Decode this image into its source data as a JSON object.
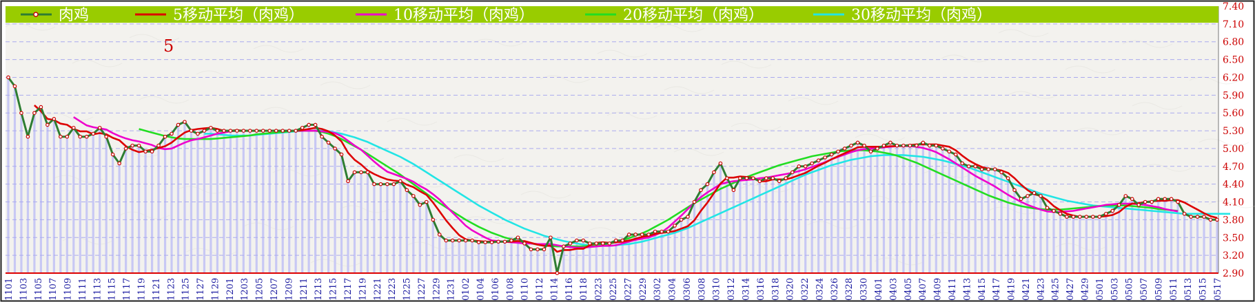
{
  "chart_data": {
    "type": "line",
    "annotation": "5",
    "ylim": [
      2.9,
      7.4
    ],
    "yticks": [
      "7.40",
      "7.10",
      "6.80",
      "6.50",
      "6.20",
      "5.90",
      "5.60",
      "5.30",
      "5.00",
      "4.70",
      "4.40",
      "4.10",
      "3.80",
      "3.50",
      "3.20",
      "2.90"
    ],
    "xticks": [
      "1101",
      "1103",
      "1105",
      "1107",
      "1109",
      "1111",
      "1113",
      "1115",
      "1117",
      "1119",
      "1121",
      "1123",
      "1125",
      "1127",
      "1129",
      "1201",
      "1203",
      "1205",
      "1207",
      "1209",
      "1211",
      "1213",
      "1215",
      "1217",
      "1219",
      "1221",
      "1223",
      "1225",
      "1227",
      "1229",
      "1231",
      "0102",
      "0104",
      "0106",
      "0108",
      "0110",
      "0112",
      "0114",
      "0116",
      "0118",
      "0223",
      "0225",
      "0227",
      "0229",
      "0302",
      "0304",
      "0306",
      "0308",
      "0310",
      "0312",
      "0314",
      "0316",
      "0318",
      "0320",
      "0322",
      "0324",
      "0326",
      "0328",
      "0330",
      "0401",
      "0403",
      "0405",
      "0407",
      "0409",
      "0411",
      "0413",
      "0415",
      "0417",
      "0419",
      "0421",
      "0423",
      "0425",
      "0427",
      "0429",
      "0501",
      "0503",
      "0505",
      "0507",
      "0509",
      "0511",
      "0513",
      "0515",
      "0517"
    ],
    "grid": true,
    "legend_position": "top",
    "colors": {
      "legend_band": "#99cc00",
      "legend_text": "#ffffff",
      "price": "#2e7d32",
      "marker": "#cc0000",
      "ma5": "#dd0000",
      "ma10": "#ee00cc",
      "ma20": "#22dd22",
      "ma30": "#22e5e5",
      "grid": "#aaaaee",
      "vbars": "#c8c8f4",
      "ytick": "#cc0000",
      "xtick": "#1a1aa0"
    },
    "series": [
      {
        "name": "肉鸡",
        "key": "price",
        "values": [
          6.2,
          6.05,
          5.6,
          5.2,
          5.6,
          5.7,
          5.4,
          5.5,
          5.2,
          5.2,
          5.35,
          5.2,
          5.2,
          5.25,
          5.35,
          5.2,
          4.9,
          4.75,
          5,
          5.05,
          5.05,
          4.95,
          4.95,
          5.05,
          5.2,
          5.25,
          5.4,
          5.45,
          5.3,
          5.25,
          5.3,
          5.35,
          5.3,
          5.3,
          5.3,
          5.3,
          5.3,
          5.3,
          5.3,
          5.3,
          5.3,
          5.3,
          5.3,
          5.3,
          5.3,
          5.35,
          5.4,
          5.4,
          5.2,
          5.1,
          5.0,
          4.9,
          4.45,
          4.6,
          4.6,
          4.6,
          4.4,
          4.4,
          4.4,
          4.4,
          4.45,
          4.3,
          4.2,
          4.05,
          4.1,
          3.8,
          3.55,
          3.45,
          3.45,
          3.45,
          3.45,
          3.45,
          3.42,
          3.42,
          3.42,
          3.43,
          3.43,
          3.45,
          3.5,
          3.4,
          3.3,
          3.3,
          3.3,
          3.5,
          2.9,
          3.35,
          3.4,
          3.45,
          3.45,
          3.4,
          3.4,
          3.4,
          3.4,
          3.45,
          3.45,
          3.55,
          3.55,
          3.55,
          3.55,
          3.6,
          3.6,
          3.6,
          3.7,
          3.8,
          3.85,
          4.1,
          4.3,
          4.4,
          4.6,
          4.75,
          4.5,
          4.3,
          4.5,
          4.5,
          4.5,
          4.45,
          4.5,
          4.5,
          4.45,
          4.5,
          4.6,
          4.7,
          4.7,
          4.75,
          4.8,
          4.85,
          4.9,
          4.95,
          5.0,
          5.05,
          5.1,
          5.05,
          4.95,
          5.0,
          5.05,
          5.1,
          5.05,
          5.05,
          5.05,
          5.05,
          5.1,
          5.05,
          5.05,
          5.0,
          4.95,
          4.9,
          4.75,
          4.7,
          4.7,
          4.65,
          4.65,
          4.65,
          4.6,
          4.5,
          4.3,
          4.15,
          4.2,
          4.25,
          4.2,
          4.0,
          3.95,
          3.9,
          3.85,
          3.85,
          3.85,
          3.85,
          3.85,
          3.85,
          3.9,
          3.95,
          4.05,
          4.2,
          4.15,
          4.05,
          4.1,
          4.1,
          4.15,
          4.15,
          4.15,
          4.1,
          3.9,
          3.85,
          3.85,
          3.85,
          3.8,
          3.8
        ]
      },
      {
        "name": "5移动平均（肉鸡）",
        "key": "ma5",
        "values": [
          null,
          null,
          null,
          null,
          5.73,
          5.63,
          5.5,
          5.48,
          5.42,
          5.4,
          5.33,
          5.29,
          5.29,
          5.24,
          5.26,
          5.24,
          5.18,
          5.14,
          5.04,
          4.98,
          4.94,
          4.96,
          4.98,
          5.01,
          5.04,
          5.1,
          5.19,
          5.27,
          5.31,
          5.33,
          5.34,
          5.35,
          5.33,
          5.3,
          5.3,
          5.31,
          5.3,
          5.3,
          5.3,
          5.3,
          5.3,
          5.3,
          5.3,
          5.3,
          5.3,
          5.31,
          5.33,
          5.35,
          5.33,
          5.29,
          5.22,
          5.12,
          4.93,
          4.81,
          4.73,
          4.63,
          4.57,
          4.52,
          4.48,
          4.46,
          4.45,
          4.39,
          4.35,
          4.28,
          4.22,
          4.09,
          3.94,
          3.79,
          3.66,
          3.54,
          3.47,
          3.45,
          3.44,
          3.43,
          3.43,
          3.43,
          3.43,
          3.43,
          3.44,
          3.44,
          3.41,
          3.38,
          3.36,
          3.36,
          3.26,
          3.29,
          3.29,
          3.31,
          3.31,
          3.37,
          3.41,
          3.42,
          3.41,
          3.42,
          3.43,
          3.45,
          3.48,
          3.51,
          3.53,
          3.56,
          3.58,
          3.59,
          3.61,
          3.65,
          3.69,
          3.79,
          3.95,
          4.09,
          4.25,
          4.41,
          4.51,
          4.51,
          4.53,
          4.52,
          4.51,
          4.45,
          4.45,
          4.48,
          4.48,
          4.48,
          4.51,
          4.55,
          4.59,
          4.65,
          4.71,
          4.76,
          4.82,
          4.87,
          4.92,
          4.97,
          5.02,
          5.03,
          5.03,
          5.03,
          5.03,
          5.04,
          5.04,
          5.05,
          5.06,
          5.07,
          5.07,
          5.07,
          5.07,
          5.05,
          5.03,
          4.97,
          4.88,
          4.8,
          4.74,
          4.69,
          4.66,
          4.65,
          4.63,
          4.59,
          4.5,
          4.39,
          4.3,
          4.23,
          4.2,
          4.13,
          4.03,
          3.96,
          3.9,
          3.87,
          3.85,
          3.85,
          3.85,
          3.85,
          3.86,
          3.88,
          3.93,
          4.02,
          4.07,
          4.08,
          4.1,
          4.11,
          4.12,
          4.12,
          4.13,
          4.13,
          4.09,
          4.03,
          3.97,
          3.91,
          3.86,
          3.83
        ]
      },
      {
        "name": "10移动平均（肉鸡）",
        "key": "ma10",
        "values": [
          null,
          null,
          null,
          null,
          null,
          null,
          null,
          null,
          null,
          null,
          5.53,
          5.46,
          5.39,
          5.36,
          5.34,
          5.32,
          5.26,
          5.21,
          5.17,
          5.14,
          5.12,
          5.09,
          5.06,
          5.01,
          4.99,
          5.0,
          5.05,
          5.1,
          5.14,
          5.16,
          5.19,
          5.22,
          5.25,
          5.27,
          5.29,
          5.3,
          5.3,
          5.3,
          5.3,
          5.3,
          5.3,
          5.3,
          5.3,
          5.3,
          5.3,
          5.3,
          5.3,
          5.3,
          5.29,
          5.28,
          5.26,
          5.21,
          5.13,
          5.05,
          4.98,
          4.88,
          4.78,
          4.69,
          4.61,
          4.57,
          4.53,
          4.49,
          4.44,
          4.37,
          4.31,
          4.23,
          4.14,
          4.03,
          3.92,
          3.81,
          3.7,
          3.62,
          3.56,
          3.5,
          3.45,
          3.44,
          3.43,
          3.42,
          3.41,
          3.4,
          3.4,
          3.39,
          3.39,
          3.39,
          3.37,
          3.35,
          3.34,
          3.33,
          3.33,
          3.34,
          3.35,
          3.36,
          3.36,
          3.37,
          3.4,
          3.43,
          3.46,
          3.48,
          3.5,
          3.54,
          3.59,
          3.67,
          3.77,
          3.87,
          3.98,
          4.09,
          4.18,
          4.26,
          4.33,
          4.4,
          4.43,
          4.45,
          4.46,
          4.47,
          4.48,
          4.5,
          4.51,
          4.53,
          4.55,
          4.57,
          4.59,
          4.62,
          4.65,
          4.69,
          4.73,
          4.77,
          4.82,
          4.86,
          4.9,
          4.94,
          4.97,
          4.99,
          5.0,
          5.01,
          5.02,
          5.03,
          5.04,
          5.04,
          5.04,
          5.03,
          5.01,
          4.98,
          4.94,
          4.88,
          4.82,
          4.75,
          4.68,
          4.61,
          4.54,
          4.48,
          4.42,
          4.36,
          4.29,
          4.22,
          4.16,
          4.1,
          4.05,
          4.01,
          3.97,
          3.94,
          3.93,
          3.93,
          3.94,
          3.95,
          3.97,
          3.99,
          4.01,
          4.03,
          4.05,
          4.06,
          4.07,
          4.07,
          4.07,
          4.06,
          4.05,
          4.03,
          4.01,
          3.98,
          3.96,
          3.94
        ]
      },
      {
        "name": "20移动平均（肉鸡）",
        "key": "ma20",
        "values": [
          null,
          null,
          null,
          null,
          null,
          null,
          null,
          null,
          null,
          null,
          null,
          null,
          null,
          null,
          null,
          null,
          null,
          null,
          null,
          null,
          5.33,
          5.3,
          5.27,
          5.24,
          5.21,
          5.19,
          5.17,
          5.16,
          5.16,
          5.16,
          5.16,
          5.16,
          5.17,
          5.18,
          5.19,
          5.2,
          5.21,
          5.22,
          5.24,
          5.25,
          5.26,
          5.27,
          5.28,
          5.29,
          5.3,
          5.3,
          5.3,
          5.3,
          5.28,
          5.25,
          5.21,
          5.16,
          5.1,
          5.04,
          4.98,
          4.91,
          4.84,
          4.77,
          4.7,
          4.63,
          4.56,
          4.48,
          4.4,
          4.32,
          4.24,
          4.16,
          4.08,
          4.01,
          3.94,
          3.87,
          3.8,
          3.74,
          3.68,
          3.63,
          3.58,
          3.54,
          3.5,
          3.47,
          3.44,
          3.42,
          3.4,
          3.38,
          3.37,
          3.36,
          3.35,
          3.35,
          3.35,
          3.35,
          3.35,
          3.36,
          3.37,
          3.38,
          3.4,
          3.42,
          3.45,
          3.49,
          3.53,
          3.57,
          3.62,
          3.68,
          3.74,
          3.8,
          3.87,
          3.94,
          4.01,
          4.08,
          4.14,
          4.2,
          4.26,
          4.32,
          4.37,
          4.42,
          4.47,
          4.52,
          4.56,
          4.6,
          4.64,
          4.68,
          4.72,
          4.75,
          4.78,
          4.81,
          4.84,
          4.87,
          4.89,
          4.91,
          4.93,
          4.95,
          4.96,
          4.97,
          4.97,
          4.97,
          4.96,
          4.95,
          4.93,
          4.91,
          4.88,
          4.84,
          4.8,
          4.76,
          4.71,
          4.66,
          4.61,
          4.56,
          4.51,
          4.46,
          4.41,
          4.36,
          4.31,
          4.26,
          4.21,
          4.17,
          4.13,
          4.09,
          4.06,
          4.03,
          4.01,
          3.99,
          3.98,
          3.97,
          3.97,
          3.97,
          3.98,
          3.99,
          4.0,
          4.01,
          4.02,
          4.03,
          4.04,
          4.04,
          4.04,
          4.04,
          4.03,
          4.02,
          4.01,
          4.0,
          3.98,
          3.97,
          3.96,
          3.95
        ]
      },
      {
        "name": "30移动平均（肉鸡）",
        "key": "ma30",
        "values": [
          null,
          null,
          null,
          null,
          null,
          null,
          null,
          null,
          null,
          null,
          null,
          null,
          null,
          null,
          null,
          null,
          null,
          null,
          null,
          null,
          null,
          null,
          null,
          null,
          null,
          null,
          null,
          null,
          null,
          null,
          5.25,
          5.25,
          5.24,
          5.23,
          5.22,
          5.22,
          5.22,
          5.22,
          5.23,
          5.24,
          5.25,
          5.26,
          5.27,
          5.28,
          5.29,
          5.3,
          5.3,
          5.3,
          5.3,
          5.29,
          5.27,
          5.25,
          5.22,
          5.19,
          5.15,
          5.11,
          5.06,
          5.01,
          4.96,
          4.91,
          4.86,
          4.8,
          4.74,
          4.67,
          4.6,
          4.53,
          4.46,
          4.39,
          4.32,
          4.25,
          4.18,
          4.11,
          4.04,
          3.98,
          3.92,
          3.86,
          3.8,
          3.75,
          3.7,
          3.65,
          3.61,
          3.57,
          3.53,
          3.5,
          3.47,
          3.44,
          3.42,
          3.4,
          3.38,
          3.37,
          3.36,
          3.36,
          3.36,
          3.37,
          3.38,
          3.39,
          3.41,
          3.43,
          3.46,
          3.49,
          3.52,
          3.55,
          3.58,
          3.62,
          3.66,
          3.71,
          3.76,
          3.81,
          3.86,
          3.91,
          3.96,
          4.01,
          4.06,
          4.11,
          4.16,
          4.21,
          4.26,
          4.31,
          4.36,
          4.41,
          4.46,
          4.51,
          4.56,
          4.6,
          4.64,
          4.68,
          4.72,
          4.75,
          4.78,
          4.81,
          4.83,
          4.85,
          4.87,
          4.88,
          4.89,
          4.89,
          4.89,
          4.89,
          4.88,
          4.87,
          4.86,
          4.84,
          4.82,
          4.8,
          4.77,
          4.74,
          4.71,
          4.68,
          4.64,
          4.6,
          4.56,
          4.52,
          4.48,
          4.44,
          4.4,
          4.36,
          4.32,
          4.28,
          4.24,
          4.21,
          4.18,
          4.15,
          4.12,
          4.1,
          4.08,
          4.06,
          4.04,
          4.03,
          4.02,
          4.01,
          4.0,
          3.99,
          3.98,
          3.97,
          3.96,
          3.95,
          3.94,
          3.93,
          3.92,
          3.91,
          3.9,
          3.9,
          3.9,
          3.9,
          3.9,
          3.9,
          3.9,
          3.9
        ]
      }
    ]
  }
}
